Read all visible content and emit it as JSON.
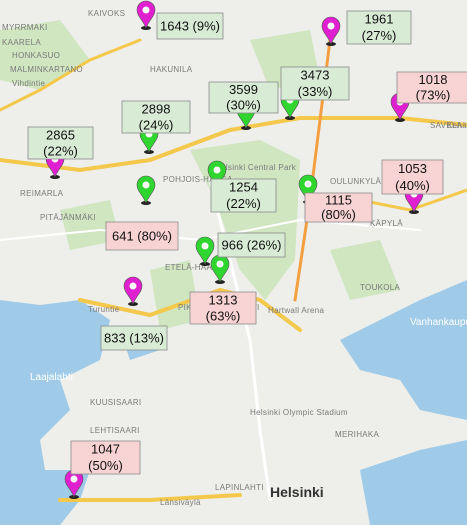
{
  "markers": [
    {
      "lines": [
        "1643 (9%)"
      ],
      "pin_color": "#e020d0",
      "box_color": "#d8ecd5"
    },
    {
      "lines": [
        "1961",
        "(27%)"
      ],
      "pin_color": "#e020d0",
      "box_color": "#d8ecd5"
    },
    {
      "lines": [
        "1018",
        "(73%)"
      ],
      "pin_color": "#e020d0",
      "box_color": "#f8d3d3"
    },
    {
      "lines": [
        "3473",
        "(33%)"
      ],
      "pin_color": "#2fd62f",
      "box_color": "#d8ecd5"
    },
    {
      "lines": [
        "3599",
        "(30%)"
      ],
      "pin_color": "#2fd62f",
      "box_color": "#d8ecd5"
    },
    {
      "lines": [
        "2898",
        "(24%)"
      ],
      "pin_color": "#2fd62f",
      "box_color": "#d8ecd5"
    },
    {
      "lines": [
        "2865",
        "(22%)"
      ],
      "pin_color": "#e020d0",
      "box_color": "#d8ecd5"
    },
    {
      "lines": [
        "1254",
        "(22%)"
      ],
      "pin_color": "#2fd62f",
      "box_color": "#d8ecd5"
    },
    {
      "lines": [
        "1115",
        "(80%)"
      ],
      "pin_color": "#2fd62f",
      "box_color": "#f8d3d3"
    },
    {
      "lines": [
        "1053",
        "(40%)"
      ],
      "pin_color": "#e020d0",
      "box_color": "#f8d3d3"
    },
    {
      "lines": [
        "641 (80%)"
      ],
      "pin_color": "#2fd62f",
      "box_color": "#f8d3d3"
    },
    {
      "lines": [
        "966 (26%)"
      ],
      "pin_color": "#2fd62f",
      "box_color": "#d8ecd5"
    },
    {
      "lines": [
        "1313",
        "(63%)"
      ],
      "pin_color": "#2fd62f",
      "box_color": "#f8d3d3"
    },
    {
      "lines": [
        "833 (13%)"
      ],
      "pin_color": "#e020d0",
      "box_color": "#d8ecd5"
    },
    {
      "lines": [
        "1047",
        "(50%)"
      ],
      "pin_color": "#e020d0",
      "box_color": "#f8d3d3"
    }
  ],
  "places": [
    "KAIVOKS",
    "MYRRMAKI",
    "KAARELA",
    "HONKASUO",
    "MALMINKARTANO",
    "HAKUNILA",
    "REIMARLA",
    "PITÄJÄNMÄKI",
    "POHJOIS-HAAGA",
    "Helsinki Central Park",
    "OULUNKYLÄ",
    "SAVELA",
    "KÄPYLÄ",
    "TOUKOLA",
    "ETELÄ-HAAGA",
    "PIKKU HUOPALAHTI",
    "Hartwall Arena",
    "Helsinki Olympic Stadium",
    "MERIHAKA",
    "KUUSISAARI",
    "LEHTISAARI",
    "LAPINLAHTI",
    "Laajalahti",
    "Vanhankaupun",
    "Helsinki",
    "Vihdintie",
    "Turuntie",
    "Länsiväylä",
    "Kehä I"
  ]
}
